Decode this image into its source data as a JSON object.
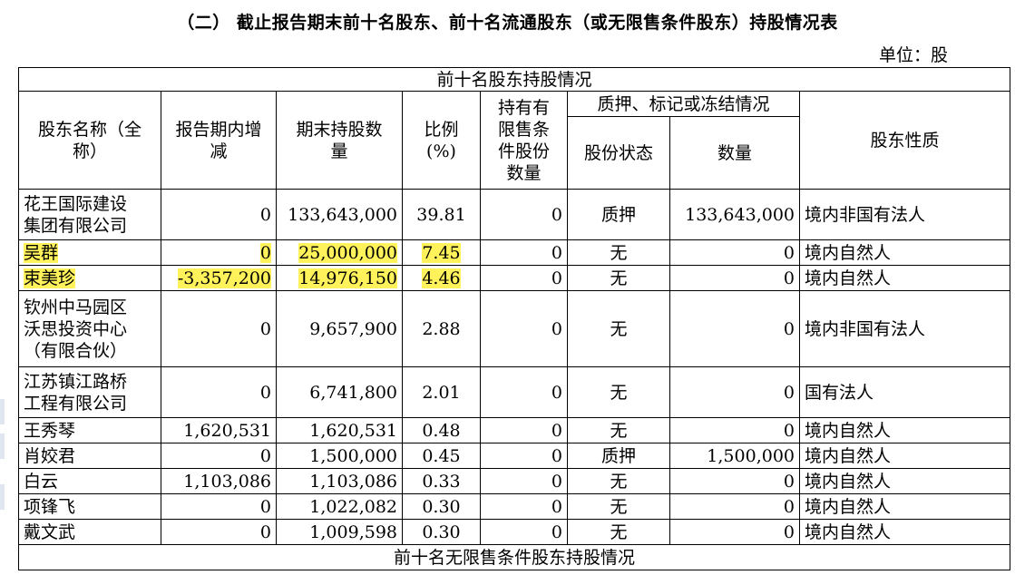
{
  "title": "（二）  截止报告期末前十名股东、前十名流通股东（或无限售条件股东）持股情况表",
  "unit": "单位：股",
  "section_top": "前十名股东持股情况",
  "section_bottom": "前十名无限售条件股东持股情况",
  "headers": {
    "name": "股东名称（全称）",
    "change": "报告期内增减",
    "shares": "期末持股数量",
    "ratio": "比例(%)",
    "restricted": "持有有限售条件股份数量",
    "pledge_group": "质押、标记或冻结情况",
    "pledge_status": "股份状态",
    "pledge_qty": "数量",
    "nature": "股东性质"
  },
  "rows": [
    {
      "name": "花王国际建设集团有限公司",
      "change": "0",
      "shares": "133,643,000",
      "ratio": "39.81",
      "restricted": "0",
      "status": "质押",
      "qty": "133,643,000",
      "nature": "境内非国有法人"
    },
    {
      "name": "吴群",
      "change": "0",
      "shares": "25,000,000",
      "ratio": "7.45",
      "restricted": "0",
      "status": "无",
      "qty": "0",
      "nature": "境内自然人"
    },
    {
      "name": "束美珍",
      "change": "-3,357,200",
      "shares": "14,976,150",
      "ratio": "4.46",
      "restricted": "0",
      "status": "无",
      "qty": "0",
      "nature": "境内自然人"
    },
    {
      "name": "钦州中马园区沃思投资中心（有限合伙）",
      "change": "0",
      "shares": "9,657,900",
      "ratio": "2.88",
      "restricted": "0",
      "status": "无",
      "qty": "0",
      "nature": "境内非国有法人"
    },
    {
      "name": "江苏镇江路桥工程有限公司",
      "change": "0",
      "shares": "6,741,800",
      "ratio": "2.01",
      "restricted": "0",
      "status": "无",
      "qty": "0",
      "nature": "国有法人"
    },
    {
      "name": "王秀琴",
      "change": "1,620,531",
      "shares": "1,620,531",
      "ratio": "0.48",
      "restricted": "0",
      "status": "无",
      "qty": "0",
      "nature": "境内自然人"
    },
    {
      "name": "肖姣君",
      "change": "0",
      "shares": "1,500,000",
      "ratio": "0.45",
      "restricted": "0",
      "status": "质押",
      "qty": "1,500,000",
      "nature": "境内自然人"
    },
    {
      "name": "白云",
      "change": "1,103,086",
      "shares": "1,103,086",
      "ratio": "0.33",
      "restricted": "0",
      "status": "无",
      "qty": "0",
      "nature": "境内自然人"
    },
    {
      "name": "项锋飞",
      "change": "0",
      "shares": "1,022,082",
      "ratio": "0.30",
      "restricted": "0",
      "status": "无",
      "qty": "0",
      "nature": "境内自然人"
    },
    {
      "name": "戴文武",
      "change": "0",
      "shares": "1,009,598",
      "ratio": "0.30",
      "restricted": "0",
      "status": "无",
      "qty": "0",
      "nature": "境内自然人"
    }
  ],
  "highlight_color": "#fff25a"
}
